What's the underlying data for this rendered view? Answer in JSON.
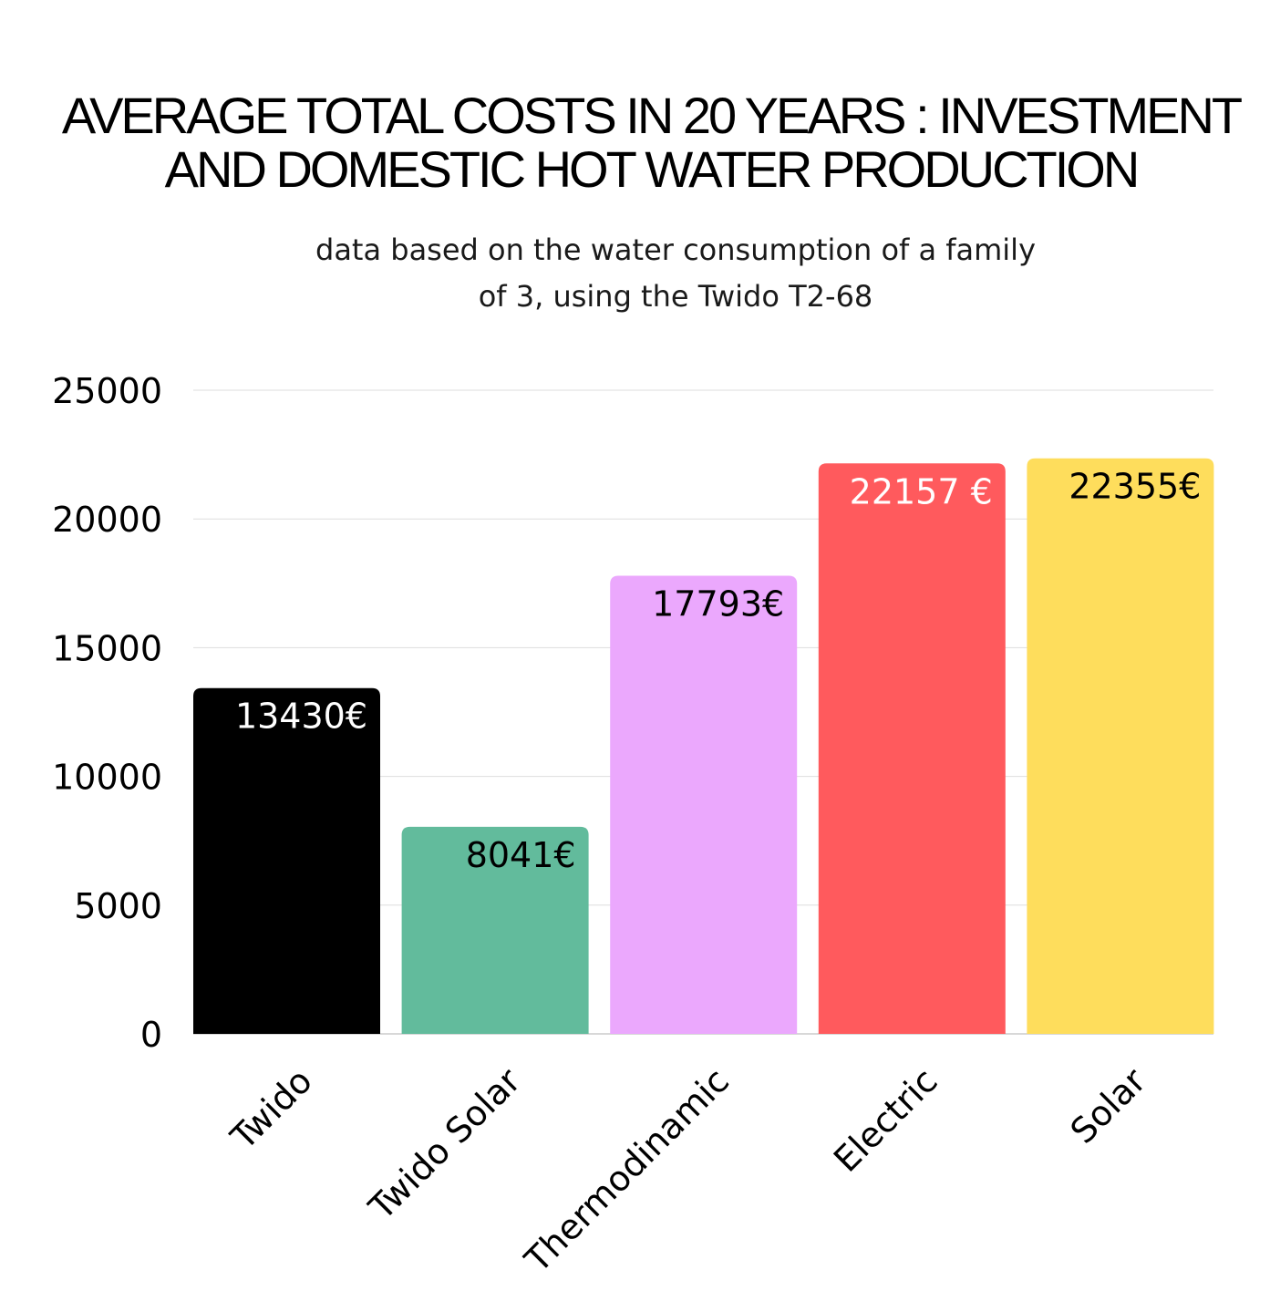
{
  "chart_data": {
    "type": "bar",
    "title_lines": [
      "AVERAGE TOTAL COSTS IN 20 YEARS : INVESTMENT",
      "AND DOMESTIC HOT WATER PRODUCTION"
    ],
    "subtitle_lines": [
      "data based on the water consumption of a family",
      "of 3, using the Twido T2-68"
    ],
    "categories": [
      "Twido",
      "Twido Solar",
      "Thermodinamic",
      "Electric",
      "Solar"
    ],
    "values": [
      13430,
      8041,
      17793,
      22157,
      22355
    ],
    "data_labels": [
      "13430€",
      "8041€",
      "17793€",
      "22157 €",
      "22355€"
    ],
    "colors": [
      "#000000",
      "#62bb9c",
      "#eba8fd",
      "#ff5a5d",
      "#fedd5c"
    ],
    "label_colors": [
      "#ffffff",
      "#000000",
      "#000000",
      "#ffffff",
      "#000000"
    ],
    "ylim": [
      0,
      25000
    ],
    "yticks": [
      0,
      5000,
      10000,
      15000,
      20000,
      25000
    ],
    "ytick_labels": [
      "0",
      "5000",
      "10000",
      "15000",
      "20000",
      "25000"
    ],
    "grid": true,
    "xlabel": "",
    "ylabel": ""
  }
}
